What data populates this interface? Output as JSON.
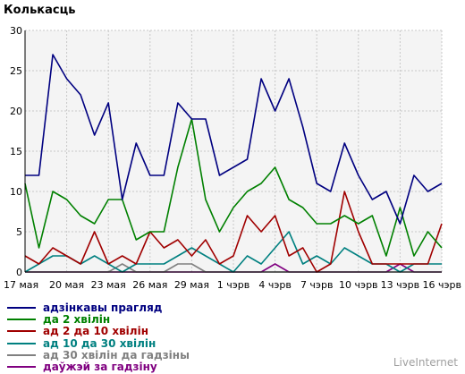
{
  "chart_data": {
    "type": "line",
    "title": "Колькасць",
    "ylim": [
      0,
      30
    ],
    "yticks": [
      0,
      5,
      10,
      15,
      20,
      25,
      30
    ],
    "grid": true,
    "x": [
      "17 мая",
      "18 мая",
      "19 мая",
      "20 мая",
      "21 мая",
      "22 мая",
      "23 мая",
      "24 мая",
      "25 мая",
      "26 мая",
      "27 мая",
      "28 мая",
      "29 мая",
      "30 мая",
      "31 мая",
      "1 чэрв",
      "2 чэрв",
      "3 чэрв",
      "4 чэрв",
      "5 чэрв",
      "6 чэрв",
      "7 чэрв",
      "8 чэрв",
      "9 чэрв",
      "10 чэрв",
      "11 чэрв",
      "12 чэрв",
      "13 чэрв",
      "14 чэрв",
      "15 чэрв",
      "16 чэрв"
    ],
    "xticks": [
      "17 мая",
      "20 мая",
      "23 мая",
      "26 мая",
      "29 мая",
      "1 чэрв",
      "4 чэрв",
      "7 чэрв",
      "10 чэрв",
      "13 чэрв",
      "16 чэрв"
    ],
    "legend_position": "bottom",
    "series": [
      {
        "name": "адзінкавы прагляд",
        "color": "#000080",
        "values": [
          12,
          12,
          27,
          24,
          22,
          17,
          21,
          9,
          16,
          12,
          12,
          21,
          19,
          19,
          12,
          13,
          14,
          24,
          20,
          24,
          18,
          11,
          10,
          16,
          12,
          9,
          10,
          6,
          12,
          10,
          11
        ]
      },
      {
        "name": "да 2 хвілін",
        "color": "#008000",
        "values": [
          11,
          3,
          10,
          9,
          7,
          6,
          9,
          9,
          4,
          5,
          5,
          13,
          19,
          9,
          5,
          8,
          10,
          11,
          13,
          9,
          8,
          6,
          6,
          7,
          6,
          7,
          2,
          8,
          2,
          5,
          3
        ]
      },
      {
        "name": "ад 2 да 10 хвілін",
        "color": "#a00000",
        "values": [
          2,
          1,
          3,
          2,
          1,
          5,
          1,
          2,
          1,
          5,
          3,
          4,
          2,
          4,
          1,
          2,
          7,
          5,
          7,
          2,
          3,
          0,
          1,
          10,
          5,
          1,
          1,
          1,
          1,
          1,
          6
        ]
      },
      {
        "name": "ад 10 да 30 хвілін",
        "color": "#008080",
        "values": [
          0,
          1,
          2,
          2,
          1,
          2,
          1,
          0,
          1,
          1,
          1,
          2,
          3,
          2,
          1,
          0,
          2,
          1,
          3,
          5,
          1,
          2,
          1,
          3,
          2,
          1,
          1,
          0,
          1,
          1,
          1
        ]
      },
      {
        "name": "ад 30 хвілін да гадзіны",
        "color": "#808080",
        "values": [
          0,
          0,
          0,
          0,
          0,
          0,
          0,
          1,
          0,
          0,
          0,
          1,
          1,
          0,
          0,
          0,
          0,
          0,
          0,
          0,
          0,
          0,
          0,
          0,
          0,
          0,
          0,
          0,
          0,
          0,
          0
        ]
      },
      {
        "name": "даўжэй за гадзіну",
        "color": "#800080",
        "values": [
          0,
          0,
          0,
          0,
          0,
          0,
          0,
          0,
          0,
          0,
          0,
          0,
          0,
          0,
          0,
          0,
          0,
          0,
          1,
          0,
          0,
          0,
          0,
          0,
          0,
          0,
          0,
          1,
          0,
          0,
          0
        ]
      }
    ]
  },
  "watermark": "LiveInternet"
}
